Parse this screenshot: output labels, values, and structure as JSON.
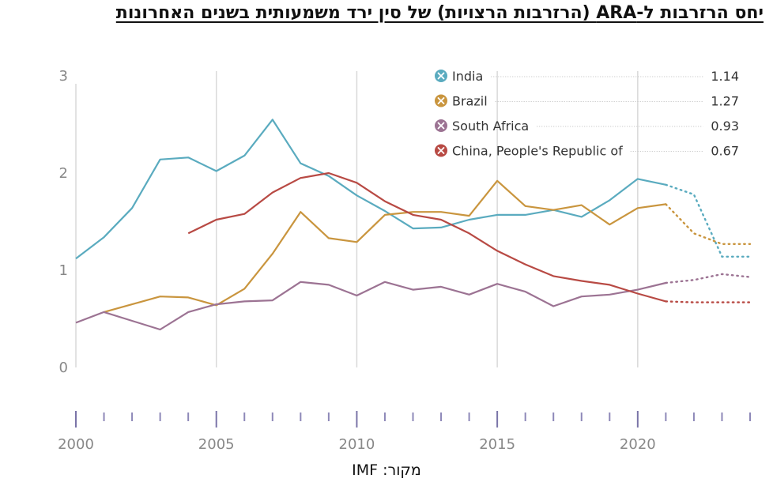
{
  "title": "יחס הרזרבות ל-ARA (הרזרבות הרצויות) של סין ירד משמעותית בשנים האחרונות",
  "source": "מקור: IMF",
  "chart_data": {
    "type": "line",
    "title": "יחס הרזרבות ל-ARA (הרזרבות הרצויות) של סין ירד משמעותית בשנים האחרונות",
    "xlabel": "",
    "ylabel": "",
    "xlim": [
      2000,
      2024
    ],
    "ylim": [
      0,
      3
    ],
    "x_ticks": [
      2000,
      2005,
      2010,
      2015,
      2020
    ],
    "y_ticks": [
      0,
      1,
      2,
      3
    ],
    "grid": "vertical",
    "legend_position": "top-right",
    "series": [
      {
        "name": "India",
        "color": "#5aabbf",
        "legend_value": "1.14",
        "x": [
          2000,
          2001,
          2002,
          2003,
          2004,
          2005,
          2006,
          2007,
          2008,
          2009,
          2010,
          2011,
          2012,
          2013,
          2014,
          2015,
          2016,
          2017,
          2018,
          2019,
          2020,
          2021
        ],
        "y": [
          1.12,
          1.34,
          1.64,
          2.14,
          2.16,
          2.02,
          2.18,
          2.55,
          2.1,
          1.97,
          1.77,
          1.61,
          1.43,
          1.44,
          1.52,
          1.57,
          1.57,
          1.62,
          1.55,
          1.72,
          1.94,
          1.88
        ],
        "projection_x": [
          2021,
          2022,
          2023,
          2024
        ],
        "projection_y": [
          1.88,
          1.78,
          1.14,
          1.14
        ]
      },
      {
        "name": "Brazil",
        "color": "#c9953e",
        "legend_value": "1.27",
        "x": [
          2001,
          2002,
          2003,
          2004,
          2005,
          2006,
          2007,
          2008,
          2009,
          2010,
          2011,
          2012,
          2013,
          2014,
          2015,
          2016,
          2017,
          2018,
          2019,
          2020,
          2021
        ],
        "y": [
          0.57,
          0.65,
          0.73,
          0.72,
          0.64,
          0.81,
          1.17,
          1.6,
          1.33,
          1.29,
          1.57,
          1.6,
          1.6,
          1.56,
          1.92,
          1.66,
          1.62,
          1.67,
          1.47,
          1.64,
          1.68
        ],
        "projection_x": [
          2021,
          2022,
          2023,
          2024
        ],
        "projection_y": [
          1.68,
          1.38,
          1.27,
          1.27
        ]
      },
      {
        "name": "South Africa",
        "color": "#9c7393",
        "legend_value": "0.93",
        "x": [
          2000,
          2001,
          2002,
          2003,
          2004,
          2005,
          2006,
          2007,
          2008,
          2009,
          2010,
          2011,
          2012,
          2013,
          2014,
          2015,
          2016,
          2017,
          2018,
          2019,
          2020,
          2021
        ],
        "y": [
          0.46,
          0.57,
          0.48,
          0.39,
          0.57,
          0.65,
          0.68,
          0.69,
          0.88,
          0.85,
          0.74,
          0.88,
          0.8,
          0.83,
          0.75,
          0.86,
          0.78,
          0.63,
          0.73,
          0.75,
          0.8,
          0.87
        ],
        "projection_x": [
          2021,
          2022,
          2023,
          2024
        ],
        "projection_y": [
          0.87,
          0.9,
          0.96,
          0.93
        ]
      },
      {
        "name": "China, People's Republic of",
        "color": "#b84a44",
        "legend_value": "0.67",
        "x": [
          2004,
          2005,
          2006,
          2007,
          2008,
          2009,
          2010,
          2011,
          2012,
          2013,
          2014,
          2015,
          2016,
          2017,
          2018,
          2019,
          2020,
          2021
        ],
        "y": [
          1.38,
          1.52,
          1.58,
          1.8,
          1.95,
          2.0,
          1.9,
          1.71,
          1.57,
          1.52,
          1.38,
          1.2,
          1.06,
          0.94,
          0.89,
          0.85,
          0.76,
          0.68
        ],
        "projection_x": [
          2021,
          2022,
          2023,
          2024
        ],
        "projection_y": [
          0.68,
          0.67,
          0.67,
          0.67
        ]
      }
    ]
  }
}
